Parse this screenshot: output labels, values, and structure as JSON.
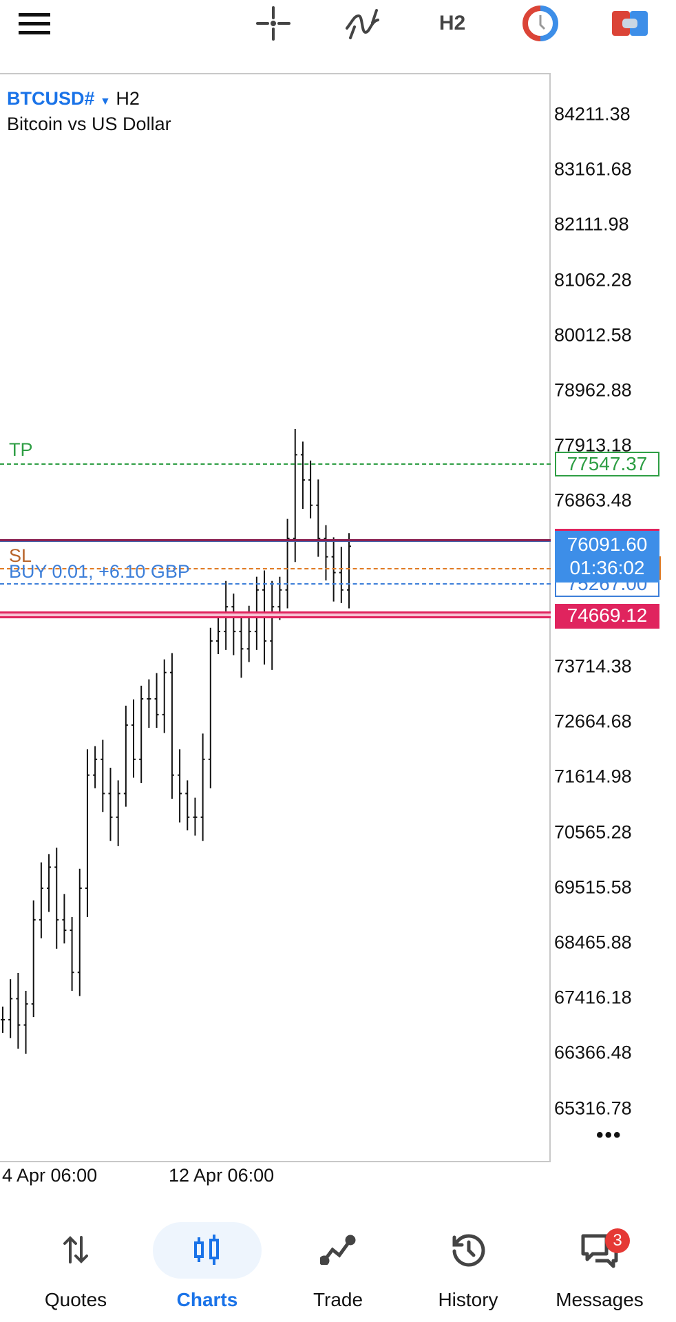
{
  "toolbar": {
    "menu_icon": "hamburger-icon",
    "crosshair_icon": "crosshair-icon",
    "indicators_icon": "indicators-icon",
    "timeframe": "H2",
    "clock_icon": "clock-icon",
    "trade_icon": "one-click-trading-icon"
  },
  "symbol": {
    "name": "BTCUSD#",
    "timeframe": "H2",
    "description": "Bitcoin vs US Dollar"
  },
  "price_axis": [
    "84211.38",
    "83161.68",
    "82111.98",
    "81062.28",
    "80012.58",
    "78962.88",
    "77913.18",
    "76863.48",
    "73714.38",
    "72664.68",
    "71614.98",
    "70565.28",
    "69515.58",
    "68465.88",
    "67416.18",
    "66366.48",
    "65316.78"
  ],
  "levels": {
    "tp": {
      "label": "TP",
      "price": "77547.37",
      "color": "#2e9e44"
    },
    "bid": {
      "price": "76091.60",
      "countdown": "01:36:02",
      "color": "#3d8ee8",
      "line_color": "#8b2252"
    },
    "sl": {
      "label": "SL",
      "color": "#e07b24"
    },
    "position": {
      "label": "BUY 0.01,  +6.10 GBP",
      "price": "75267.00",
      "color": "#3d7fd9"
    },
    "ask": {
      "price": "74669.12",
      "color": "#e0245e"
    }
  },
  "time_axis": [
    "4 Apr 06:00",
    "12 Apr 06:00"
  ],
  "more_icon": "more-horizontal-icon",
  "chart_data": {
    "type": "bar",
    "ylim": [
      64800,
      84700
    ],
    "close": [
      67000,
      67400,
      66900,
      67300,
      68900,
      69500,
      69900,
      68900,
      68700,
      67900,
      69500,
      71650,
      71950,
      71300,
      70850,
      71300,
      72600,
      71950,
      73100,
      73100,
      72800,
      73600,
      71650,
      71300,
      70850,
      70850,
      71950,
      74200,
      74380,
      74850,
      74380,
      74050,
      74380,
      75170,
      74200,
      74850,
      75170,
      76150,
      77740,
      77260,
      76780,
      76150,
      75800,
      75500,
      75170,
      76000
    ]
  },
  "nav": [
    {
      "label": "Quotes",
      "icon": "quotes-arrows-icon"
    },
    {
      "label": "Charts",
      "icon": "candles-icon",
      "active": true
    },
    {
      "label": "Trade",
      "icon": "trade-line-icon"
    },
    {
      "label": "History",
      "icon": "history-icon"
    },
    {
      "label": "Messages",
      "icon": "messages-icon",
      "badge": "3"
    }
  ],
  "colors": {
    "accent": "#1a73e8",
    "active_pill": "#eef5fd",
    "badge": "#e53935"
  }
}
